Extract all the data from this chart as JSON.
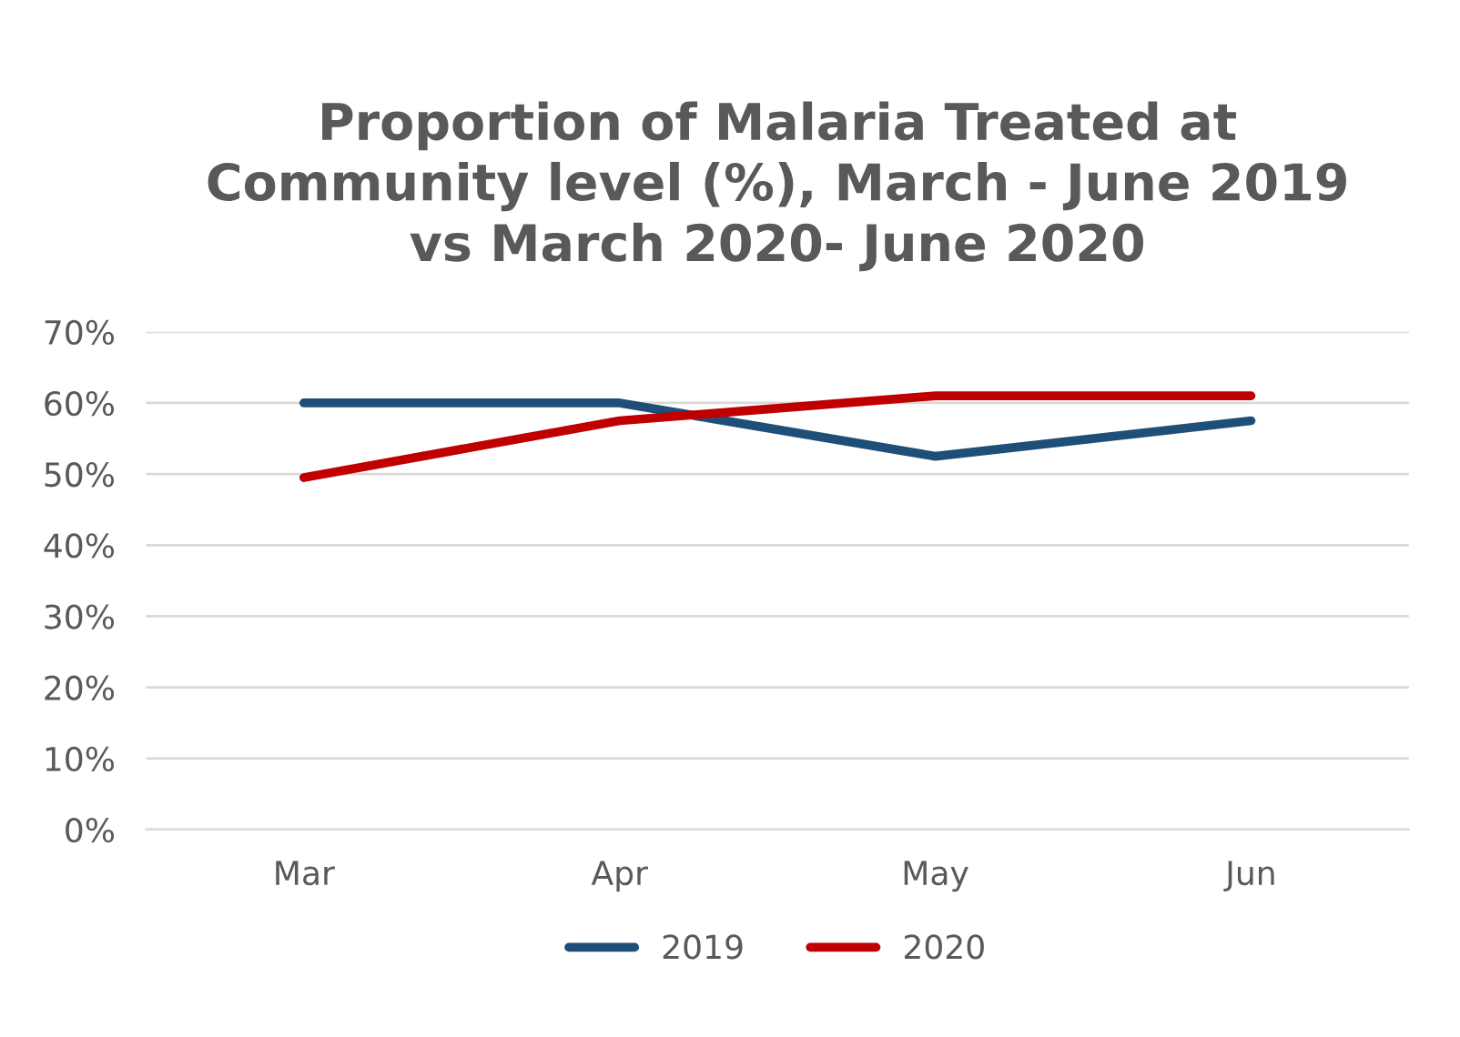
{
  "chart_data": {
    "type": "line",
    "title": "Proportion of Malaria Treated at\nCommunity level (%), March - June 2019\nvs March 2020- June 2020",
    "categories": [
      "Mar",
      "Apr",
      "May",
      "Jun"
    ],
    "series": [
      {
        "name": "2019",
        "color": "#1f4e79",
        "values": [
          60,
          60,
          52.5,
          57.5
        ]
      },
      {
        "name": "2020",
        "color": "#c00000",
        "values": [
          49.5,
          57.5,
          61,
          61
        ]
      }
    ],
    "ylim": [
      0,
      70
    ],
    "yticks": [
      {
        "value": 0,
        "label": "0%"
      },
      {
        "value": 10,
        "label": "10%"
      },
      {
        "value": 20,
        "label": "20%"
      },
      {
        "value": 30,
        "label": "30%"
      },
      {
        "value": 40,
        "label": "40%"
      },
      {
        "value": 50,
        "label": "50%"
      },
      {
        "value": 60,
        "label": "60%"
      },
      {
        "value": 70,
        "label": "70%"
      }
    ],
    "grid": "y",
    "legend": "bottom",
    "marker": "none",
    "line_style": "solid"
  }
}
